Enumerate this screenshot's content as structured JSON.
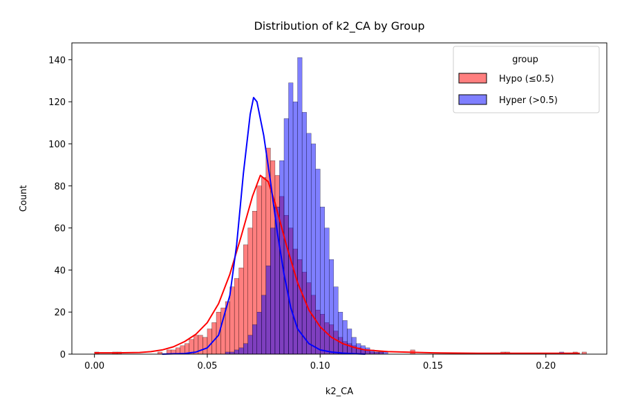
{
  "chart_data": {
    "type": "histogram",
    "title": "Distribution of k2_CA by Group",
    "xlabel": "k2_CA",
    "ylabel": "Count",
    "xlim": [
      -0.01,
      0.227
    ],
    "ylim": [
      0,
      148
    ],
    "x_ticks": [
      0.0,
      0.05,
      0.1,
      0.15,
      0.2
    ],
    "x_tick_labels": [
      "0.00",
      "0.05",
      "0.10",
      "0.15",
      "0.20"
    ],
    "y_ticks": [
      0,
      20,
      40,
      60,
      80,
      100,
      120,
      140
    ],
    "y_tick_labels": [
      "0",
      "20",
      "40",
      "60",
      "80",
      "100",
      "120",
      "140"
    ],
    "bin_start": 0.0,
    "bin_width": 0.002,
    "legend": {
      "title": "group",
      "placement": "upper right",
      "entries": [
        "Hypo (≤0.5)",
        "Hyper (>0.5)"
      ]
    },
    "series": [
      {
        "name": "Hypo (≤0.5)",
        "color": "#ff0000",
        "bar_fill": "rgba(255,0,0,0.5)",
        "counts": [
          1,
          0,
          0,
          0,
          1,
          1,
          0,
          0,
          0,
          0,
          0,
          0,
          0,
          0,
          1,
          0,
          2,
          2,
          3,
          4,
          5,
          7,
          9,
          9,
          8,
          12,
          15,
          20,
          22,
          25,
          32,
          36,
          41,
          52,
          60,
          68,
          80,
          84,
          98,
          92,
          85,
          75,
          66,
          60,
          50,
          45,
          39,
          34,
          28,
          21,
          19,
          15,
          14,
          11,
          8,
          6,
          5,
          4,
          3,
          2,
          2,
          1,
          1,
          1,
          0,
          0,
          0,
          0,
          0,
          0,
          2,
          0,
          0,
          0,
          0,
          0,
          0,
          0,
          0,
          0,
          0,
          0,
          0,
          0,
          0,
          0,
          0,
          0,
          0,
          0,
          1,
          1,
          0,
          0,
          0,
          0,
          0,
          0,
          0,
          0,
          0,
          0,
          0,
          0,
          0,
          0,
          1,
          0,
          1
        ],
        "kde": [
          [
            0,
            0.6
          ],
          [
            0.01,
            0.6
          ],
          [
            0.02,
            0.8
          ],
          [
            0.025,
            1.2
          ],
          [
            0.03,
            2
          ],
          [
            0.035,
            3.5
          ],
          [
            0.04,
            6
          ],
          [
            0.045,
            9.5
          ],
          [
            0.05,
            15
          ],
          [
            0.055,
            24
          ],
          [
            0.06,
            38
          ],
          [
            0.065,
            56
          ],
          [
            0.07,
            75
          ],
          [
            0.0735,
            85
          ],
          [
            0.077,
            82
          ],
          [
            0.08,
            72
          ],
          [
            0.085,
            52
          ],
          [
            0.09,
            34
          ],
          [
            0.095,
            21
          ],
          [
            0.1,
            13
          ],
          [
            0.105,
            8
          ],
          [
            0.11,
            5
          ],
          [
            0.115,
            3.2
          ],
          [
            0.12,
            2
          ],
          [
            0.13,
            1.2
          ],
          [
            0.14,
            0.9
          ],
          [
            0.15,
            0.6
          ],
          [
            0.17,
            0.4
          ],
          [
            0.2,
            0.4
          ],
          [
            0.215,
            0.4
          ]
        ]
      },
      {
        "name": "Hyper (>0.5)",
        "color": "#0000ff",
        "bar_fill": "rgba(0,0,255,0.5)",
        "counts": [
          0,
          0,
          0,
          0,
          0,
          0,
          0,
          0,
          0,
          0,
          0,
          0,
          0,
          0,
          0,
          0,
          0,
          0,
          0,
          0,
          0,
          0,
          0,
          0,
          0,
          0,
          0,
          0,
          0,
          1,
          1,
          2,
          3,
          5,
          9,
          14,
          20,
          28,
          42,
          60,
          70,
          92,
          112,
          129,
          120,
          141,
          115,
          105,
          100,
          88,
          70,
          60,
          45,
          32,
          20,
          16,
          12,
          8,
          5,
          4,
          3,
          2,
          1,
          1,
          1,
          0,
          0,
          0,
          0,
          0,
          0,
          0,
          0,
          0,
          0,
          0,
          0,
          0,
          0,
          0,
          0,
          0,
          0,
          0,
          0,
          0,
          0,
          0,
          0,
          0,
          0,
          0,
          0,
          0,
          0,
          0,
          0,
          0,
          0,
          0,
          0,
          0,
          0,
          1,
          0,
          0,
          0,
          0
        ],
        "kde": [
          [
            0.03,
            0
          ],
          [
            0.04,
            0.3
          ],
          [
            0.045,
            1
          ],
          [
            0.05,
            3
          ],
          [
            0.055,
            9
          ],
          [
            0.06,
            28
          ],
          [
            0.063,
            52
          ],
          [
            0.066,
            86
          ],
          [
            0.069,
            114
          ],
          [
            0.0705,
            122
          ],
          [
            0.072,
            120
          ],
          [
            0.075,
            104
          ],
          [
            0.078,
            82
          ],
          [
            0.081,
            58
          ],
          [
            0.084,
            38
          ],
          [
            0.087,
            22
          ],
          [
            0.09,
            12
          ],
          [
            0.095,
            5
          ],
          [
            0.1,
            2
          ],
          [
            0.105,
            1
          ],
          [
            0.11,
            0.5
          ],
          [
            0.115,
            0.2
          ],
          [
            0.12,
            0
          ]
        ]
      }
    ]
  }
}
